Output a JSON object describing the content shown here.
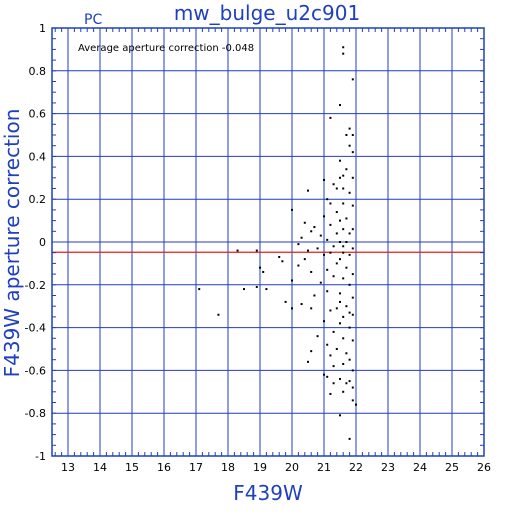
{
  "chart_data": {
    "type": "scatter",
    "title": "mw_bulge_u2c901",
    "camera_label": "PC",
    "annotation": "Average aperture correction  -0.048",
    "xlabel": "F439W",
    "ylabel": "F439W aperture correction",
    "xlim": [
      12.5,
      26
    ],
    "ylim": [
      -1,
      1
    ],
    "x_ticks": [
      13,
      14,
      15,
      16,
      17,
      18,
      19,
      20,
      21,
      22,
      23,
      24,
      25,
      26
    ],
    "y_ticks": [
      1,
      0.8,
      0.6,
      0.4,
      0.2,
      0,
      -0.2,
      -0.4,
      -0.6,
      -0.8,
      -1
    ],
    "grid": true,
    "reference_line": {
      "y": -0.048,
      "color": "#e0201f"
    },
    "colors": {
      "axis": "#1f3fbf",
      "grid": "#1f3fbf",
      "points": "#000000"
    },
    "points": [
      [
        21.6,
        0.91
      ],
      [
        21.6,
        0.88
      ],
      [
        21.9,
        0.76
      ],
      [
        21.5,
        0.64
      ],
      [
        21.2,
        0.58
      ],
      [
        21.8,
        0.53
      ],
      [
        21.9,
        0.5
      ],
      [
        21.7,
        0.5
      ],
      [
        21.8,
        0.45
      ],
      [
        21.9,
        0.42
      ],
      [
        21.5,
        0.38
      ],
      [
        21.7,
        0.34
      ],
      [
        21.6,
        0.31
      ],
      [
        21.9,
        0.3
      ],
      [
        21.5,
        0.3
      ],
      [
        21.0,
        0.29
      ],
      [
        21.3,
        0.27
      ],
      [
        21.4,
        0.25
      ],
      [
        21.6,
        0.25
      ],
      [
        21.8,
        0.23
      ],
      [
        20.5,
        0.24
      ],
      [
        21.1,
        0.2
      ],
      [
        21.2,
        0.18
      ],
      [
        21.6,
        0.18
      ],
      [
        21.9,
        0.17
      ],
      [
        21.4,
        0.14
      ],
      [
        20.0,
        0.15
      ],
      [
        21.0,
        0.12
      ],
      [
        21.7,
        0.11
      ],
      [
        21.5,
        0.1
      ],
      [
        20.4,
        0.09
      ],
      [
        21.2,
        0.08
      ],
      [
        20.7,
        0.07
      ],
      [
        21.6,
        0.06
      ],
      [
        21.9,
        0.06
      ],
      [
        20.6,
        0.05
      ],
      [
        21.4,
        0.04
      ],
      [
        21.8,
        0.04
      ],
      [
        20.9,
        0.03
      ],
      [
        20.3,
        0.02
      ],
      [
        21.1,
        0.01
      ],
      [
        21.7,
        0.0
      ],
      [
        21.5,
        0.0
      ],
      [
        20.2,
        -0.01
      ],
      [
        21.3,
        -0.02
      ],
      [
        21.6,
        -0.02
      ],
      [
        21.9,
        -0.03
      ],
      [
        20.8,
        -0.03
      ],
      [
        18.9,
        -0.04
      ],
      [
        18.3,
        -0.04
      ],
      [
        20.5,
        -0.04
      ],
      [
        21.2,
        -0.05
      ],
      [
        21.6,
        -0.05
      ],
      [
        21.8,
        -0.06
      ],
      [
        21.0,
        -0.06
      ],
      [
        19.6,
        -0.07
      ],
      [
        20.4,
        -0.08
      ],
      [
        21.5,
        -0.08
      ],
      [
        19.7,
        -0.09
      ],
      [
        21.4,
        -0.1
      ],
      [
        20.2,
        -0.11
      ],
      [
        19.0,
        -0.12
      ],
      [
        21.7,
        -0.12
      ],
      [
        21.1,
        -0.13
      ],
      [
        19.1,
        -0.14
      ],
      [
        20.6,
        -0.14
      ],
      [
        21.9,
        -0.15
      ],
      [
        21.3,
        -0.16
      ],
      [
        21.6,
        -0.17
      ],
      [
        20.0,
        -0.18
      ],
      [
        20.9,
        -0.19
      ],
      [
        21.8,
        -0.2
      ],
      [
        18.9,
        -0.21
      ],
      [
        18.5,
        -0.22
      ],
      [
        17.1,
        -0.22
      ],
      [
        19.2,
        -0.22
      ],
      [
        21.1,
        -0.23
      ],
      [
        21.5,
        -0.24
      ],
      [
        20.7,
        -0.25
      ],
      [
        21.9,
        -0.26
      ],
      [
        19.8,
        -0.28
      ],
      [
        21.5,
        -0.28
      ],
      [
        20.3,
        -0.29
      ],
      [
        21.7,
        -0.3
      ],
      [
        21.4,
        -0.31
      ],
      [
        20.0,
        -0.31
      ],
      [
        20.6,
        -0.31
      ],
      [
        21.2,
        -0.32
      ],
      [
        21.8,
        -0.33
      ],
      [
        17.7,
        -0.34
      ],
      [
        21.9,
        -0.34
      ],
      [
        21.6,
        -0.35
      ],
      [
        21.0,
        -0.37
      ],
      [
        21.5,
        -0.38
      ],
      [
        21.8,
        -0.4
      ],
      [
        21.3,
        -0.42
      ],
      [
        20.8,
        -0.44
      ],
      [
        21.6,
        -0.45
      ],
      [
        21.9,
        -0.46
      ],
      [
        21.1,
        -0.48
      ],
      [
        21.4,
        -0.5
      ],
      [
        20.6,
        -0.51
      ],
      [
        21.7,
        -0.52
      ],
      [
        21.2,
        -0.53
      ],
      [
        21.8,
        -0.55
      ],
      [
        20.5,
        -0.56
      ],
      [
        21.6,
        -0.57
      ],
      [
        21.3,
        -0.58
      ],
      [
        21.9,
        -0.6
      ],
      [
        21.0,
        -0.62
      ],
      [
        21.1,
        -0.63
      ],
      [
        21.5,
        -0.64
      ],
      [
        21.8,
        -0.65
      ],
      [
        21.3,
        -0.66
      ],
      [
        21.7,
        -0.66
      ],
      [
        21.9,
        -0.68
      ],
      [
        21.6,
        -0.7
      ],
      [
        21.2,
        -0.71
      ],
      [
        21.9,
        -0.74
      ],
      [
        22.0,
        -0.76
      ],
      [
        21.5,
        -0.81
      ],
      [
        21.8,
        -0.92
      ]
    ]
  }
}
